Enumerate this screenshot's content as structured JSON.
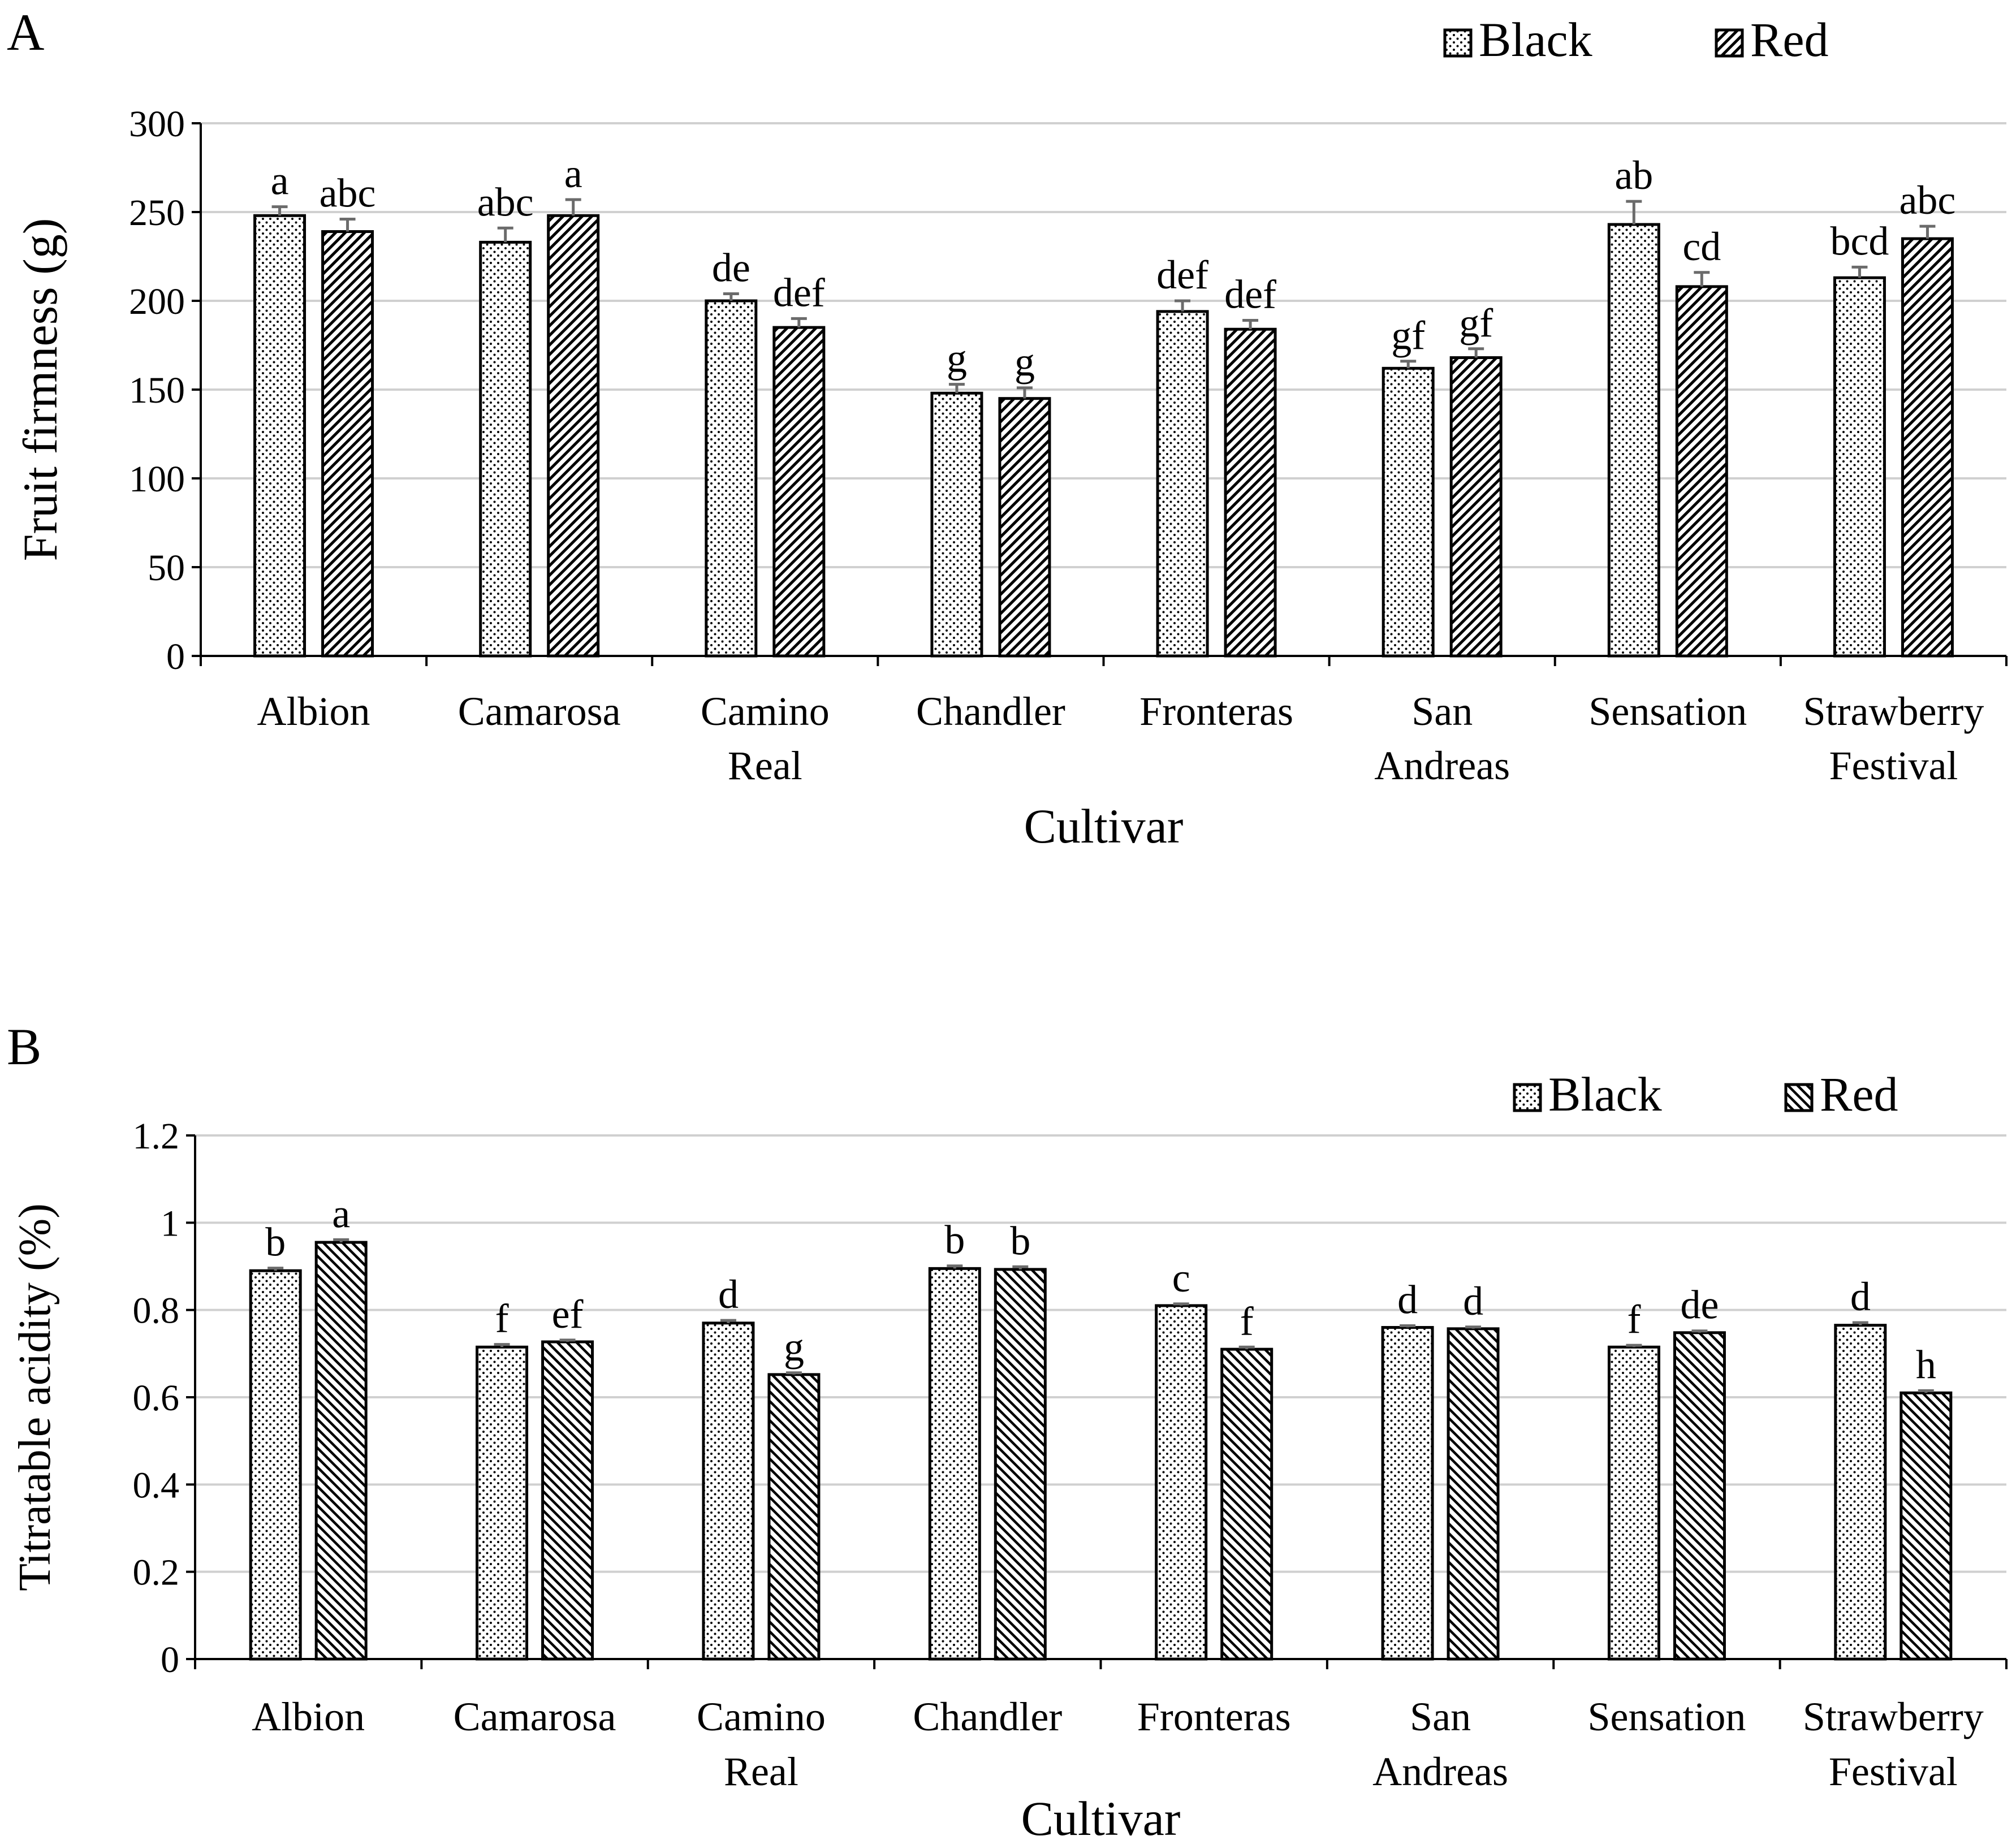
{
  "chart_data": [
    {
      "panel": "A",
      "type": "bar",
      "title": "",
      "xlabel": "Cultivar",
      "ylabel": "Fruit firmness (g)",
      "ylim": [
        0,
        300
      ],
      "yticks": [
        "0",
        "50",
        "100",
        "150",
        "200",
        "250",
        "300"
      ],
      "grid": true,
      "legend_position": "top-right",
      "categories": [
        [
          "Albion"
        ],
        [
          "Camarosa"
        ],
        [
          "Camino",
          "Real"
        ],
        [
          "Chandler"
        ],
        [
          "Fronteras"
        ],
        [
          "San",
          "Andreas"
        ],
        [
          "Sensation"
        ],
        [
          "Strawberry",
          "Festival"
        ]
      ],
      "series": [
        {
          "name": "Black",
          "pattern": "dots",
          "values": [
            248,
            233,
            200,
            148,
            194,
            162,
            243,
            213
          ],
          "errors": [
            5,
            8,
            4,
            5,
            6,
            4,
            13,
            6
          ],
          "labels": [
            "a",
            "abc",
            "de",
            "g",
            "def",
            "gf",
            "ab",
            "bcd"
          ]
        },
        {
          "name": "Red",
          "pattern": "hatch",
          "values": [
            239,
            248,
            185,
            145,
            184,
            168,
            208,
            235
          ],
          "errors": [
            7,
            9,
            5,
            6,
            5,
            5,
            8,
            7
          ],
          "labels": [
            "abc",
            "a",
            "def",
            "g",
            "def",
            "gf",
            "cd",
            "abc"
          ]
        }
      ]
    },
    {
      "panel": "B",
      "type": "bar",
      "title": "",
      "xlabel": "Cultivar",
      "ylabel": "Titratable acidity (%)",
      "ylim": [
        0,
        1.2
      ],
      "yticks": [
        "0",
        "0.2",
        "0.4",
        "0.6",
        "0.8",
        "1",
        "1.2"
      ],
      "grid": true,
      "legend_position": "top-right",
      "categories": [
        [
          "Albion"
        ],
        [
          "Camarosa"
        ],
        [
          "Camino",
          "Real"
        ],
        [
          "Chandler"
        ],
        [
          "Fronteras"
        ],
        [
          "San",
          "Andreas"
        ],
        [
          "Sensation"
        ],
        [
          "Strawberry",
          "Festival"
        ]
      ],
      "series": [
        {
          "name": "Black",
          "pattern": "dots",
          "values": [
            0.89,
            0.715,
            0.77,
            0.895,
            0.81,
            0.76,
            0.715,
            0.765
          ],
          "errors": [
            0.006,
            0.006,
            0.006,
            0.006,
            0.004,
            0.004,
            0.004,
            0.006
          ],
          "labels": [
            "b",
            "f",
            "d",
            "b",
            "c",
            "d",
            "f",
            "d"
          ]
        },
        {
          "name": "Red",
          "pattern": "diag",
          "values": [
            0.955,
            0.727,
            0.652,
            0.893,
            0.71,
            0.757,
            0.748,
            0.61
          ],
          "errors": [
            0.006,
            0.004,
            0.004,
            0.006,
            0.005,
            0.004,
            0.004,
            0.005
          ],
          "labels": [
            "a",
            "ef",
            "g",
            "b",
            "f",
            "d",
            "de",
            "h"
          ]
        }
      ]
    }
  ],
  "panel_letters": [
    "A",
    "B"
  ]
}
